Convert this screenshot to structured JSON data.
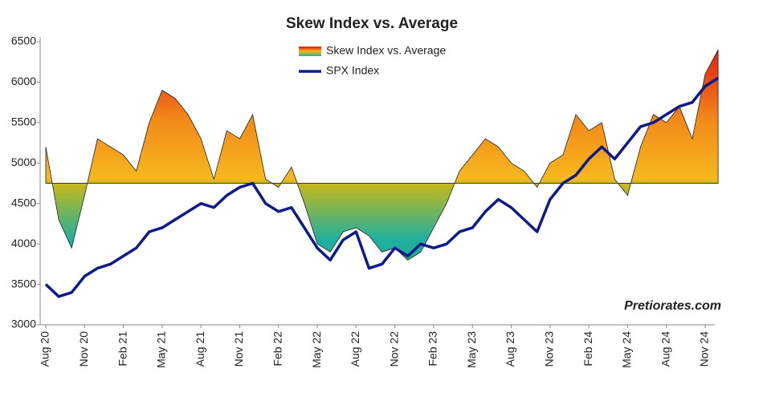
{
  "chart_data": {
    "type": "area-line",
    "title": "Skew Index vs. Average",
    "watermark": "Pretiorates.com",
    "categories": [
      "Aug 20",
      null,
      null,
      "Nov 20",
      null,
      null,
      "Feb 21",
      null,
      null,
      "May 21",
      null,
      null,
      "Aug 21",
      null,
      null,
      "Nov 21",
      null,
      null,
      "Feb 22",
      null,
      null,
      "May 22",
      null,
      null,
      "Aug 22",
      null,
      null,
      "Nov 22",
      null,
      null,
      "Feb 23",
      null,
      null,
      "May 23",
      null,
      null,
      "Aug 23",
      null,
      null,
      "Nov 23",
      null,
      null,
      "Feb 24",
      null,
      null,
      "May 24",
      null,
      null,
      "Aug 24",
      null,
      null,
      "Nov 24",
      null
    ],
    "series": [
      {
        "name": "Skew Index vs. Average",
        "baseline": 4750,
        "gradient": [
          "#e01010",
          "#f28a1a",
          "#f7b81e",
          "#c8b818",
          "#1fb0a0",
          "#2a9a60"
        ],
        "values": [
          5200,
          4300,
          3950,
          4600,
          5300,
          5200,
          5100,
          4900,
          5500,
          5900,
          5800,
          5600,
          5300,
          4800,
          5400,
          5300,
          5600,
          4800,
          4700,
          4950,
          4500,
          4000,
          3900,
          4150,
          4200,
          4100,
          3900,
          3950,
          3800,
          3900,
          4200,
          4500,
          4900,
          5100,
          5300,
          5200,
          5000,
          4900,
          4700,
          5000,
          5100,
          5600,
          5400,
          5500,
          4800,
          4600,
          5200,
          5600,
          5500,
          5700,
          5300,
          6100,
          6400
        ]
      },
      {
        "name": "SPX Index",
        "color": "#0d1a8a",
        "values": [
          3500,
          3350,
          3400,
          3600,
          3700,
          3750,
          3850,
          3950,
          4150,
          4200,
          4300,
          4400,
          4500,
          4450,
          4600,
          4700,
          4750,
          4500,
          4400,
          4450,
          4200,
          3950,
          3800,
          4050,
          4150,
          3700,
          3750,
          3950,
          3850,
          4000,
          3950,
          4000,
          4150,
          4200,
          4400,
          4550,
          4450,
          4300,
          4150,
          4550,
          4750,
          4850,
          5050,
          5200,
          5050,
          5250,
          5450,
          5500,
          5600,
          5700,
          5750,
          5950,
          6050
        ]
      }
    ],
    "ylim": [
      3000,
      6500
    ],
    "yticks": [
      3000,
      3500,
      4000,
      4500,
      5000,
      5500,
      6000,
      6500
    ]
  }
}
